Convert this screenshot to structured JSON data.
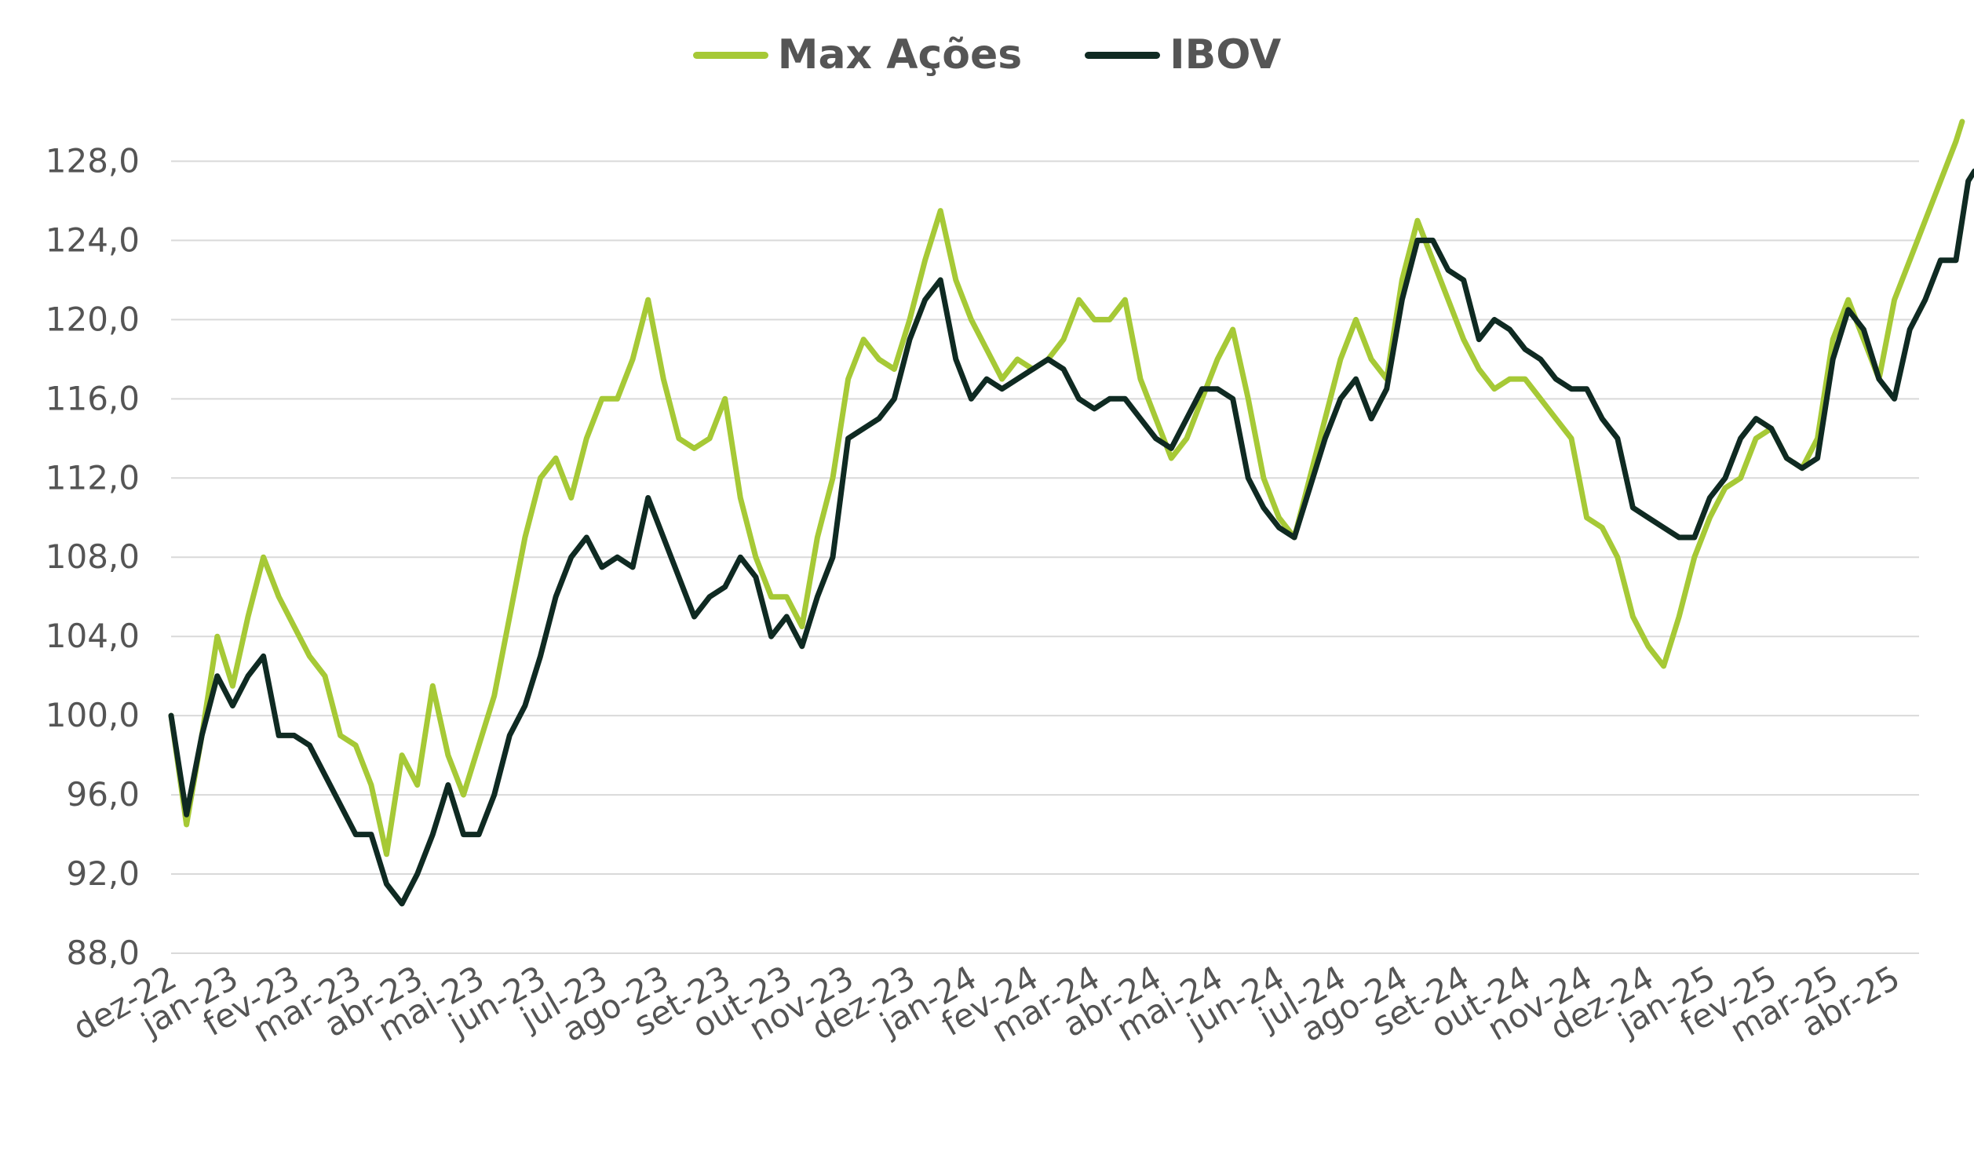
{
  "colors": {
    "max_acoes": "#a6c936",
    "ibov": "#0f2a22",
    "grid": "#d9d9d9",
    "text": "#555555"
  },
  "legend": [
    {
      "label": "Max Ações",
      "color": "#a6c936"
    },
    {
      "label": "IBOV",
      "color": "#0f2a22"
    }
  ],
  "chart_data": {
    "type": "line",
    "title": "",
    "xlabel": "",
    "ylabel": "",
    "ylim": [
      88,
      130
    ],
    "yticks": [
      "88,0",
      "92,0",
      "96,0",
      "100,0",
      "104,0",
      "108,0",
      "112,0",
      "116,0",
      "120,0",
      "124,0",
      "128,0"
    ],
    "grid": true,
    "legend_position": "top",
    "categories": [
      "dez-22",
      "jan-23",
      "fev-23",
      "mar-23",
      "abr-23",
      "mai-23",
      "jun-23",
      "jul-23",
      "ago-23",
      "set-23",
      "out-23",
      "nov-23",
      "dez-23",
      "jan-24",
      "fev-24",
      "mar-24",
      "abr-24",
      "mai-24",
      "jun-24",
      "jul-24",
      "ago-24",
      "set-24",
      "out-24",
      "nov-24",
      "dez-24",
      "jan-25",
      "fev-25",
      "mar-25",
      "abr-25"
    ],
    "series": [
      {
        "name": "Max Ações",
        "color": "#a6c936",
        "values": [
          [
            0,
            100
          ],
          [
            0.25,
            94.5
          ],
          [
            0.5,
            99
          ],
          [
            0.75,
            104
          ],
          [
            1,
            101.5
          ],
          [
            1.25,
            105
          ],
          [
            1.5,
            108
          ],
          [
            1.75,
            106
          ],
          [
            2,
            104.5
          ],
          [
            2.25,
            103
          ],
          [
            2.5,
            102
          ],
          [
            2.75,
            99
          ],
          [
            3,
            98.5
          ],
          [
            3.25,
            96.5
          ],
          [
            3.5,
            93
          ],
          [
            3.75,
            98
          ],
          [
            4,
            96.5
          ],
          [
            4.25,
            101.5
          ],
          [
            4.5,
            98
          ],
          [
            4.75,
            96
          ],
          [
            5,
            98.5
          ],
          [
            5.25,
            101
          ],
          [
            5.5,
            105
          ],
          [
            5.75,
            109
          ],
          [
            6,
            112
          ],
          [
            6.25,
            113
          ],
          [
            6.5,
            111
          ],
          [
            6.75,
            114
          ],
          [
            7,
            116
          ],
          [
            7.25,
            116
          ],
          [
            7.5,
            118
          ],
          [
            7.75,
            121
          ],
          [
            8,
            117
          ],
          [
            8.25,
            114
          ],
          [
            8.5,
            113.5
          ],
          [
            8.75,
            114
          ],
          [
            9,
            116
          ],
          [
            9.25,
            111
          ],
          [
            9.5,
            108
          ],
          [
            9.75,
            106
          ],
          [
            10,
            106
          ],
          [
            10.25,
            104.5
          ],
          [
            10.5,
            109
          ],
          [
            10.75,
            112
          ],
          [
            11,
            117
          ],
          [
            11.25,
            119
          ],
          [
            11.5,
            118
          ],
          [
            11.75,
            117.5
          ],
          [
            12,
            120
          ],
          [
            12.25,
            123
          ],
          [
            12.5,
            125.5
          ],
          [
            12.75,
            122
          ],
          [
            13,
            120
          ],
          [
            13.25,
            118.5
          ],
          [
            13.5,
            117
          ],
          [
            13.75,
            118
          ],
          [
            14,
            117.5
          ],
          [
            14.25,
            118
          ],
          [
            14.5,
            119
          ],
          [
            14.75,
            121
          ],
          [
            15,
            120
          ],
          [
            15.25,
            120
          ],
          [
            15.5,
            121
          ],
          [
            15.75,
            117
          ],
          [
            16,
            115
          ],
          [
            16.25,
            113
          ],
          [
            16.5,
            114
          ],
          [
            16.75,
            116
          ],
          [
            17,
            118
          ],
          [
            17.25,
            119.5
          ],
          [
            17.5,
            116
          ],
          [
            17.75,
            112
          ],
          [
            18,
            110
          ],
          [
            18.25,
            109
          ],
          [
            18.5,
            112
          ],
          [
            18.75,
            115
          ],
          [
            19,
            118
          ],
          [
            19.25,
            120
          ],
          [
            19.5,
            118
          ],
          [
            19.75,
            117
          ],
          [
            20,
            122
          ],
          [
            20.25,
            125
          ],
          [
            20.5,
            123
          ],
          [
            20.75,
            121
          ],
          [
            21,
            119
          ],
          [
            21.25,
            117.5
          ],
          [
            21.5,
            116.5
          ],
          [
            21.75,
            117
          ],
          [
            22,
            117
          ],
          [
            22.25,
            116
          ],
          [
            22.5,
            115
          ],
          [
            22.75,
            114
          ],
          [
            23,
            110
          ],
          [
            23.25,
            109.5
          ],
          [
            23.5,
            108
          ],
          [
            23.75,
            105
          ],
          [
            24,
            103.5
          ],
          [
            24.25,
            102.5
          ],
          [
            24.5,
            105
          ],
          [
            24.75,
            108
          ],
          [
            25,
            110
          ],
          [
            25.25,
            111.5
          ],
          [
            25.5,
            112
          ],
          [
            25.75,
            114
          ],
          [
            26,
            114.5
          ],
          [
            26.25,
            113
          ],
          [
            26.5,
            112.5
          ],
          [
            26.75,
            114
          ],
          [
            27,
            119
          ],
          [
            27.25,
            121
          ],
          [
            27.5,
            119
          ],
          [
            27.75,
            117
          ],
          [
            28,
            121
          ],
          [
            28.25,
            123
          ],
          [
            28.5,
            125
          ],
          [
            28.75,
            127
          ],
          [
            29,
            129
          ],
          [
            29.1,
            130
          ]
        ]
      },
      {
        "name": "IBOV",
        "color": "#0f2a22",
        "values": [
          [
            0,
            100
          ],
          [
            0.25,
            95
          ],
          [
            0.5,
            99
          ],
          [
            0.75,
            102
          ],
          [
            1,
            100.5
          ],
          [
            1.25,
            102
          ],
          [
            1.5,
            103
          ],
          [
            1.75,
            99
          ],
          [
            2,
            99
          ],
          [
            2.25,
            98.5
          ],
          [
            2.5,
            97
          ],
          [
            2.75,
            95.5
          ],
          [
            3,
            94
          ],
          [
            3.25,
            94
          ],
          [
            3.5,
            91.5
          ],
          [
            3.75,
            90.5
          ],
          [
            4,
            92
          ],
          [
            4.25,
            94
          ],
          [
            4.5,
            96.5
          ],
          [
            4.75,
            94
          ],
          [
            5,
            94
          ],
          [
            5.25,
            96
          ],
          [
            5.5,
            99
          ],
          [
            5.75,
            100.5
          ],
          [
            6,
            103
          ],
          [
            6.25,
            106
          ],
          [
            6.5,
            108
          ],
          [
            6.75,
            109
          ],
          [
            7,
            107.5
          ],
          [
            7.25,
            108
          ],
          [
            7.5,
            107.5
          ],
          [
            7.75,
            111
          ],
          [
            8,
            109
          ],
          [
            8.25,
            107
          ],
          [
            8.5,
            105
          ],
          [
            8.75,
            106
          ],
          [
            9,
            106.5
          ],
          [
            9.25,
            108
          ],
          [
            9.5,
            107
          ],
          [
            9.75,
            104
          ],
          [
            10,
            105
          ],
          [
            10.25,
            103.5
          ],
          [
            10.5,
            106
          ],
          [
            10.75,
            108
          ],
          [
            11,
            114
          ],
          [
            11.25,
            114.5
          ],
          [
            11.5,
            115
          ],
          [
            11.75,
            116
          ],
          [
            12,
            119
          ],
          [
            12.25,
            121
          ],
          [
            12.5,
            122
          ],
          [
            12.75,
            118
          ],
          [
            13,
            116
          ],
          [
            13.25,
            117
          ],
          [
            13.5,
            116.5
          ],
          [
            13.75,
            117
          ],
          [
            14,
            117.5
          ],
          [
            14.25,
            118
          ],
          [
            14.5,
            117.5
          ],
          [
            14.75,
            116
          ],
          [
            15,
            115.5
          ],
          [
            15.25,
            116
          ],
          [
            15.5,
            116
          ],
          [
            15.75,
            115
          ],
          [
            16,
            114
          ],
          [
            16.25,
            113.5
          ],
          [
            16.5,
            115
          ],
          [
            16.75,
            116.5
          ],
          [
            17,
            116.5
          ],
          [
            17.25,
            116
          ],
          [
            17.5,
            112
          ],
          [
            17.75,
            110.5
          ],
          [
            18,
            109.5
          ],
          [
            18.25,
            109
          ],
          [
            18.5,
            111.5
          ],
          [
            18.75,
            114
          ],
          [
            19,
            116
          ],
          [
            19.25,
            117
          ],
          [
            19.5,
            115
          ],
          [
            19.75,
            116.5
          ],
          [
            20,
            121
          ],
          [
            20.25,
            124
          ],
          [
            20.5,
            124
          ],
          [
            20.75,
            122.5
          ],
          [
            21,
            122
          ],
          [
            21.25,
            119
          ],
          [
            21.5,
            120
          ],
          [
            21.75,
            119.5
          ],
          [
            22,
            118.5
          ],
          [
            22.25,
            118
          ],
          [
            22.5,
            117
          ],
          [
            22.75,
            116.5
          ],
          [
            23,
            116.5
          ],
          [
            23.25,
            115
          ],
          [
            23.5,
            114
          ],
          [
            23.75,
            110.5
          ],
          [
            24,
            110
          ],
          [
            24.25,
            109.5
          ],
          [
            24.5,
            109
          ],
          [
            24.75,
            109
          ],
          [
            25,
            111
          ],
          [
            25.25,
            112
          ],
          [
            25.5,
            114
          ],
          [
            25.75,
            115
          ],
          [
            26,
            114.5
          ],
          [
            26.25,
            113
          ],
          [
            26.5,
            112.5
          ],
          [
            26.75,
            113
          ],
          [
            27,
            118
          ],
          [
            27.25,
            120.5
          ],
          [
            27.5,
            119.5
          ],
          [
            27.75,
            117
          ],
          [
            28,
            116
          ],
          [
            28.25,
            119.5
          ],
          [
            28.5,
            121
          ],
          [
            28.75,
            123
          ],
          [
            29,
            123
          ],
          [
            29.2,
            127
          ],
          [
            29.3,
            127.5
          ]
        ]
      }
    ]
  }
}
